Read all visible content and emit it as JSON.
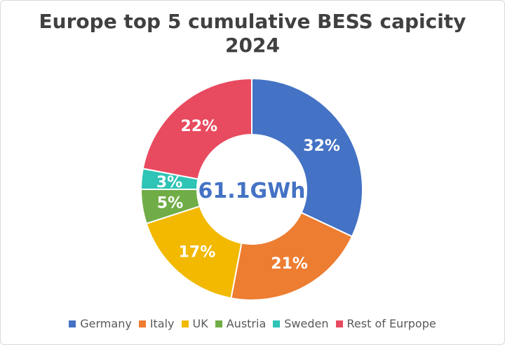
{
  "chart_data": {
    "type": "pie",
    "title_line1": "Europe top 5 cumulative BESS capicity",
    "title_line2": "2024",
    "center_label": "61.1GWh",
    "categories": [
      "Germany",
      "Italy",
      "UK",
      "Austria",
      "Sweden",
      "Rest of Eurpope"
    ],
    "values": [
      32,
      21,
      17,
      5,
      3,
      22
    ],
    "labels": [
      "32%",
      "21%",
      "17%",
      "5%",
      "3%",
      "22%"
    ],
    "colors": [
      "#4472C4",
      "#ED7D31",
      "#F2B900",
      "#70AD47",
      "#2EC4B6",
      "#E84A5F"
    ],
    "center_color": "#4472C4",
    "legend_position": "bottom"
  }
}
